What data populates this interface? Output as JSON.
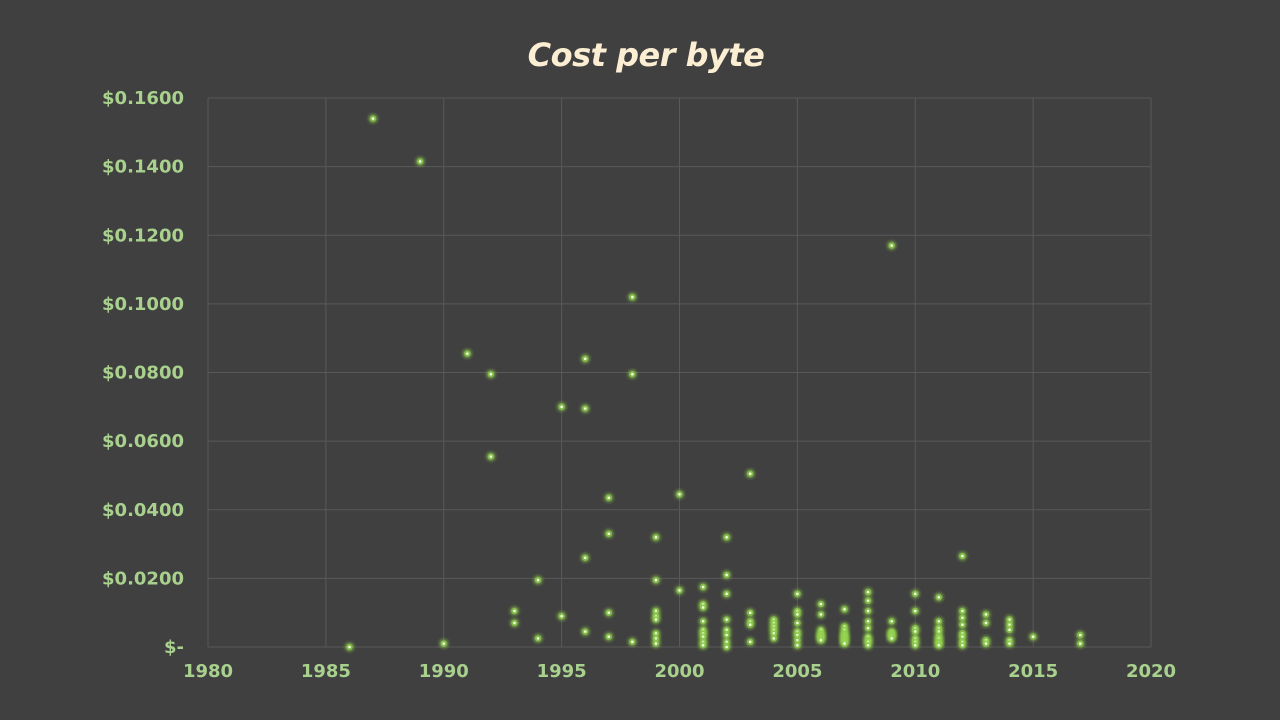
{
  "chart_data": {
    "type": "scatter",
    "title": "Cost per byte",
    "xlabel": "",
    "ylabel": "",
    "xlim": [
      1980,
      2020
    ],
    "ylim": [
      0,
      0.16
    ],
    "x_ticks": [
      "1980",
      "1985",
      "1990",
      "1995",
      "2000",
      "2005",
      "2010",
      "2015",
      "2020"
    ],
    "y_ticks": [
      "$-",
      "$0.0200",
      "$0.0400",
      "$0.0600",
      "$0.0800",
      "$0.1000",
      "$0.1200",
      "$0.1400",
      "$0.1600"
    ],
    "grid": true,
    "legend": "none",
    "colors": {
      "background": "#404040",
      "grid": "#595959",
      "marker": "#92d050",
      "title": "#fbeed2",
      "tick_label": "#a9d18e"
    },
    "points": [
      [
        1986,
        0.0
      ],
      [
        1987,
        0.154
      ],
      [
        1989,
        0.1415
      ],
      [
        1990,
        0.001
      ],
      [
        1991,
        0.0855
      ],
      [
        1992,
        0.0795
      ],
      [
        1992,
        0.0555
      ],
      [
        1993,
        0.0105
      ],
      [
        1993,
        0.007
      ],
      [
        1994,
        0.0195
      ],
      [
        1994,
        0.0025
      ],
      [
        1995,
        0.07
      ],
      [
        1995,
        0.009
      ],
      [
        1996,
        0.084
      ],
      [
        1996,
        0.0695
      ],
      [
        1996,
        0.026
      ],
      [
        1996,
        0.0045
      ],
      [
        1997,
        0.0435
      ],
      [
        1997,
        0.033
      ],
      [
        1997,
        0.01
      ],
      [
        1997,
        0.003
      ],
      [
        1998,
        0.102
      ],
      [
        1998,
        0.0795
      ],
      [
        1998,
        0.0015
      ],
      [
        1999,
        0.032
      ],
      [
        1999,
        0.0195
      ],
      [
        1999,
        0.0105
      ],
      [
        1999,
        0.009
      ],
      [
        1999,
        0.008
      ],
      [
        1999,
        0.004
      ],
      [
        1999,
        0.0025
      ],
      [
        1999,
        0.001
      ],
      [
        2000,
        0.0445
      ],
      [
        2000,
        0.0165
      ],
      [
        2001,
        0.0175
      ],
      [
        2001,
        0.0125
      ],
      [
        2001,
        0.0115
      ],
      [
        2001,
        0.0075
      ],
      [
        2001,
        0.005
      ],
      [
        2001,
        0.004
      ],
      [
        2001,
        0.003
      ],
      [
        2001,
        0.0015
      ],
      [
        2001,
        0.0005
      ],
      [
        2002,
        0.032
      ],
      [
        2002,
        0.021
      ],
      [
        2002,
        0.0155
      ],
      [
        2002,
        0.008
      ],
      [
        2002,
        0.005
      ],
      [
        2002,
        0.0035
      ],
      [
        2002,
        0.0015
      ],
      [
        2002,
        0.0
      ],
      [
        2003,
        0.0505
      ],
      [
        2003,
        0.01
      ],
      [
        2003,
        0.0075
      ],
      [
        2003,
        0.0065
      ],
      [
        2003,
        0.0015
      ],
      [
        2004,
        0.008
      ],
      [
        2004,
        0.007
      ],
      [
        2004,
        0.006
      ],
      [
        2004,
        0.005
      ],
      [
        2004,
        0.004
      ],
      [
        2004,
        0.0025
      ],
      [
        2005,
        0.0155
      ],
      [
        2005,
        0.0105
      ],
      [
        2005,
        0.0095
      ],
      [
        2005,
        0.007
      ],
      [
        2005,
        0.0045
      ],
      [
        2005,
        0.0035
      ],
      [
        2005,
        0.002
      ],
      [
        2005,
        0.0005
      ],
      [
        2006,
        0.0125
      ],
      [
        2006,
        0.0095
      ],
      [
        2006,
        0.005
      ],
      [
        2006,
        0.004
      ],
      [
        2006,
        0.0035
      ],
      [
        2006,
        0.003
      ],
      [
        2006,
        0.0025
      ],
      [
        2006,
        0.002
      ],
      [
        2007,
        0.011
      ],
      [
        2007,
        0.006
      ],
      [
        2007,
        0.005
      ],
      [
        2007,
        0.004
      ],
      [
        2007,
        0.0035
      ],
      [
        2007,
        0.003
      ],
      [
        2007,
        0.0025
      ],
      [
        2007,
        0.002
      ],
      [
        2007,
        0.0015
      ],
      [
        2007,
        0.001
      ],
      [
        2008,
        0.016
      ],
      [
        2008,
        0.0135
      ],
      [
        2008,
        0.0105
      ],
      [
        2008,
        0.0075
      ],
      [
        2008,
        0.0055
      ],
      [
        2008,
        0.003
      ],
      [
        2008,
        0.002
      ],
      [
        2008,
        0.0015
      ],
      [
        2008,
        0.0005
      ],
      [
        2009,
        0.117
      ],
      [
        2009,
        0.0075
      ],
      [
        2009,
        0.0045
      ],
      [
        2009,
        0.004
      ],
      [
        2009,
        0.0035
      ],
      [
        2009,
        0.003
      ],
      [
        2009,
        0.0025
      ],
      [
        2010,
        0.0155
      ],
      [
        2010,
        0.0105
      ],
      [
        2010,
        0.0055
      ],
      [
        2010,
        0.0045
      ],
      [
        2010,
        0.0025
      ],
      [
        2010,
        0.0015
      ],
      [
        2010,
        0.0005
      ],
      [
        2011,
        0.0145
      ],
      [
        2011,
        0.0075
      ],
      [
        2011,
        0.0055
      ],
      [
        2011,
        0.0045
      ],
      [
        2011,
        0.003
      ],
      [
        2011,
        0.0025
      ],
      [
        2011,
        0.0015
      ],
      [
        2011,
        0.001
      ],
      [
        2011,
        0.0005
      ],
      [
        2012,
        0.0265
      ],
      [
        2012,
        0.0105
      ],
      [
        2012,
        0.0085
      ],
      [
        2012,
        0.0065
      ],
      [
        2012,
        0.004
      ],
      [
        2012,
        0.003
      ],
      [
        2012,
        0.0015
      ],
      [
        2012,
        0.0005
      ],
      [
        2013,
        0.0095
      ],
      [
        2013,
        0.007
      ],
      [
        2013,
        0.002
      ],
      [
        2013,
        0.001
      ],
      [
        2014,
        0.008
      ],
      [
        2014,
        0.0065
      ],
      [
        2014,
        0.005
      ],
      [
        2014,
        0.002
      ],
      [
        2014,
        0.001
      ],
      [
        2015,
        0.003
      ],
      [
        2017,
        0.0035
      ],
      [
        2017,
        0.001
      ]
    ]
  }
}
